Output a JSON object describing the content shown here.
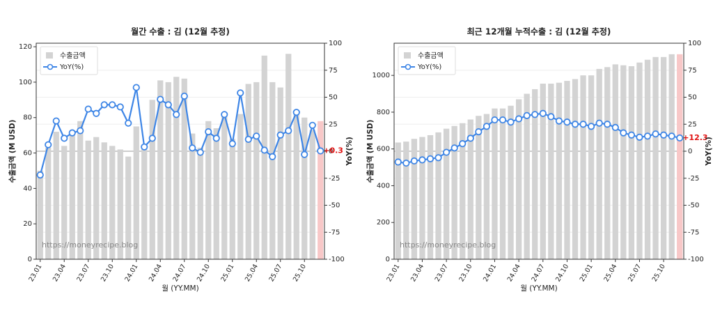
{
  "chart_data": [
    {
      "type": "bar_line",
      "title": "월간 수출 : 김 (12월 추정)",
      "xlabel": "월 (YY.MM)",
      "ylabel": "수출금액 (M USD)",
      "y2label": "YoY(%)",
      "watermark": "https://moneyrecipe.blog",
      "categories": [
        "23.01",
        null,
        null,
        "23.04",
        null,
        null,
        "23.07",
        null,
        null,
        "23.10",
        null,
        null,
        "24.01",
        null,
        null,
        "24.04",
        null,
        null,
        "24.07",
        null,
        null,
        "24.10",
        null,
        null,
        "25.01",
        null,
        null,
        "25.04",
        null,
        null,
        "25.07",
        null,
        null,
        "25.10",
        null,
        null
      ],
      "series": [
        {
          "name": "수출금액",
          "color": "#d3d3d3",
          "estimate_color": "#f8c8c8",
          "values": [
            50,
            63,
            72,
            64,
            70,
            78,
            67,
            69,
            66,
            64,
            62,
            58,
            75,
            64,
            90,
            101,
            100,
            103,
            102,
            71,
            63,
            78,
            74,
            83,
            68,
            82,
            99,
            100,
            115,
            100,
            97,
            116,
            84,
            80,
            73,
            78
          ]
        },
        {
          "name": "YoY(%)",
          "color": "#3d85e6",
          "axis": "y2",
          "values": [
            -22,
            6,
            28,
            12,
            17,
            19,
            39,
            35,
            43,
            43,
            41,
            26,
            59,
            4,
            12,
            48,
            43,
            34,
            51,
            3,
            -1,
            18,
            12,
            34,
            7,
            54,
            11,
            14,
            1,
            -5,
            15,
            19,
            36,
            -3,
            24,
            0.3
          ]
        }
      ],
      "annotation": "+0.3",
      "ylim": [
        0,
        122
      ],
      "yticks": [
        0,
        20,
        40,
        60,
        80,
        100,
        120
      ],
      "y2lim": [
        -100,
        100
      ],
      "y2ticks": [
        -100,
        -75,
        -50,
        -25,
        0,
        25,
        50,
        75,
        100
      ],
      "legend": "upper left"
    },
    {
      "type": "bar_line",
      "title": "최근 12개월 누적수출 : 김 (12월 추정)",
      "xlabel": "월 (YY.MM)",
      "ylabel": "수출금액 (M USD)",
      "y2label": "YoY(%)",
      "watermark": "https://moneyrecipe.blog",
      "categories": [
        "23.01",
        null,
        null,
        "23.04",
        null,
        null,
        "23.07",
        null,
        null,
        "23.10",
        null,
        null,
        "24.01",
        null,
        null,
        "24.04",
        null,
        null,
        "24.07",
        null,
        null,
        "24.10",
        null,
        null,
        "25.01",
        null,
        null,
        "25.04",
        null,
        null,
        "25.07",
        null,
        null,
        "25.10",
        null,
        null
      ],
      "series": [
        {
          "name": "수출금액",
          "color": "#d3d3d3",
          "estimate_color": "#f8c8c8",
          "values": [
            635,
            640,
            655,
            665,
            675,
            690,
            710,
            725,
            740,
            760,
            780,
            790,
            820,
            820,
            835,
            870,
            900,
            925,
            955,
            955,
            960,
            970,
            980,
            1000,
            1000,
            1035,
            1045,
            1060,
            1055,
            1050,
            1070,
            1085,
            1100,
            1100,
            1115,
            1115
          ]
        },
        {
          "name": "YoY(%)",
          "color": "#3d85e6",
          "axis": "y2",
          "values": [
            -10,
            -11,
            -9,
            -8,
            -7,
            -6,
            -1,
            3,
            7,
            12,
            18,
            23,
            29,
            29,
            27,
            30,
            33,
            34,
            35,
            32,
            28,
            27,
            25,
            25,
            23,
            26,
            25,
            22,
            17,
            15,
            13,
            14,
            16,
            15,
            14,
            12.3
          ]
        }
      ],
      "annotation": "+12.3",
      "ylim": [
        0,
        1175
      ],
      "yticks": [
        0,
        200,
        400,
        600,
        800,
        1000
      ],
      "y2lim": [
        -100,
        100
      ],
      "y2ticks": [
        -100,
        -75,
        -50,
        -25,
        0,
        25,
        50,
        75,
        100
      ],
      "legend": "upper left"
    }
  ]
}
